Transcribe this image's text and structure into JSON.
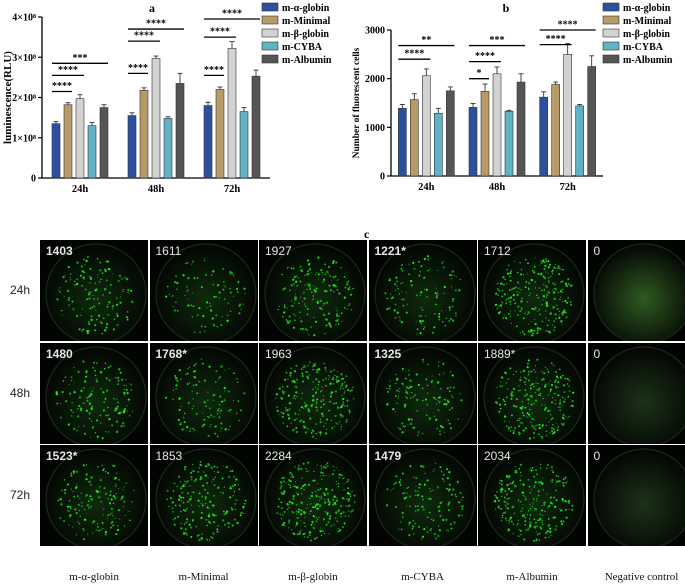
{
  "chart_data": [
    {
      "type": "bar",
      "panel_letter": "a",
      "categories": [
        "24h",
        "48h",
        "72h"
      ],
      "ylabel": "luminescence(RLU)",
      "ylim": [
        0,
        4
      ],
      "yticks": [
        "0",
        "1×10⁸",
        "2×10⁸",
        "3×10⁸",
        "4×10⁸"
      ],
      "series": [
        {
          "name": "m-α-globin",
          "color": "#2c4f9e",
          "values": [
            1.35,
            1.55,
            1.8
          ],
          "err": [
            0.05,
            0.07,
            0.08
          ]
        },
        {
          "name": "m-Minimal",
          "color": "#b89968",
          "values": [
            1.82,
            2.18,
            2.2
          ],
          "err": [
            0.05,
            0.06,
            0.06
          ]
        },
        {
          "name": "m-β-globin",
          "color": "#d2d2d2",
          "values": [
            1.97,
            2.97,
            3.22
          ],
          "err": [
            0.1,
            0.06,
            0.17
          ]
        },
        {
          "name": "m-CYBA",
          "color": "#5fb3c5",
          "values": [
            1.3,
            1.48,
            1.65
          ],
          "err": [
            0.08,
            0.04,
            0.1
          ]
        },
        {
          "name": "m-Albumin",
          "color": "#555555",
          "values": [
            1.75,
            2.35,
            2.53
          ],
          "err": [
            0.07,
            0.25,
            0.15
          ]
        }
      ],
      "annotations": [
        {
          "label": "****",
          "group": 0,
          "from": 0,
          "to": 1,
          "y": 2.15
        },
        {
          "label": "****",
          "group": 0,
          "from": 0,
          "to": 2,
          "y": 2.55
        },
        {
          "label": "***",
          "group": 0,
          "from": 0,
          "to": 4,
          "y": 2.85
        },
        {
          "label": "****",
          "group": 1,
          "from": 0,
          "to": 1,
          "y": 2.6
        },
        {
          "label": "****",
          "group": 1,
          "from": 0,
          "to": 2,
          "y": 3.4
        },
        {
          "label": "****",
          "group": 1,
          "from": 0,
          "to": 4,
          "y": 3.7
        },
        {
          "label": "****",
          "group": 2,
          "from": 0,
          "to": 1,
          "y": 2.55
        },
        {
          "label": "****",
          "group": 2,
          "from": 0,
          "to": 2,
          "y": 3.5
        },
        {
          "label": "****",
          "group": 2,
          "from": 0,
          "to": 4,
          "y": 3.95
        }
      ]
    },
    {
      "type": "bar",
      "panel_letter": "b",
      "categories": [
        "24h",
        "48h",
        "72h"
      ],
      "ylabel": "Number of fluorescent cells",
      "ylim": [
        0,
        3000
      ],
      "yticks": [
        "0",
        "1000",
        "2000",
        "3000"
      ],
      "series": [
        {
          "name": "m-α-globin",
          "color": "#2c4f9e",
          "values": [
            1390,
            1410,
            1620
          ],
          "err": [
            80,
            80,
            110
          ]
        },
        {
          "name": "m-Minimal",
          "color": "#b89968",
          "values": [
            1570,
            1740,
            1880
          ],
          "err": [
            120,
            150,
            50
          ]
        },
        {
          "name": "m-β-globin",
          "color": "#d2d2d2",
          "values": [
            2060,
            2100,
            2500
          ],
          "err": [
            140,
            140,
            220
          ]
        },
        {
          "name": "m-CYBA",
          "color": "#5fb3c5",
          "values": [
            1290,
            1330,
            1440
          ],
          "err": [
            100,
            20,
            30
          ]
        },
        {
          "name": "m-Albumin",
          "color": "#555555",
          "values": [
            1750,
            1930,
            2250
          ],
          "err": [
            80,
            170,
            220
          ]
        }
      ],
      "annotations": [
        {
          "label": "****",
          "group": 0,
          "from": 0,
          "to": 2,
          "y": 2400
        },
        {
          "label": "**",
          "group": 0,
          "from": 0,
          "to": 4,
          "y": 2680
        },
        {
          "label": "*",
          "group": 1,
          "from": 0,
          "to": 1,
          "y": 2000
        },
        {
          "label": "****",
          "group": 1,
          "from": 0,
          "to": 2,
          "y": 2350
        },
        {
          "label": "***",
          "group": 1,
          "from": 0,
          "to": 4,
          "y": 2680
        },
        {
          "label": "****",
          "group": 2,
          "from": 0,
          "to": 2,
          "y": 2700
        },
        {
          "label": "****",
          "group": 2,
          "from": 0,
          "to": 4,
          "y": 3000
        }
      ]
    }
  ],
  "panel_c": {
    "letter": "c",
    "rows": [
      "24h",
      "48h",
      "72h"
    ],
    "columns": [
      "m-α-globin",
      "m-Minimal",
      "m-β-globin",
      "m-CYBA",
      "m-Albumin",
      "Negative control"
    ],
    "counts": [
      [
        "1403",
        "1611",
        "1927",
        "1221*",
        "1712",
        "0"
      ],
      [
        "1480",
        "1768*",
        "1963",
        "1325",
        "1889*",
        "0"
      ],
      [
        "1523*",
        "1853",
        "2284",
        "1479",
        "2034",
        "0"
      ]
    ],
    "bold": [
      [
        true,
        false,
        false,
        true,
        false,
        false
      ],
      [
        true,
        true,
        false,
        true,
        false,
        false
      ],
      [
        true,
        false,
        false,
        true,
        false,
        false
      ]
    ],
    "density": [
      [
        0.55,
        0.35,
        0.7,
        0.45,
        0.95,
        0
      ],
      [
        0.55,
        0.45,
        0.95,
        0.5,
        0.95,
        0
      ],
      [
        0.6,
        0.75,
        1.0,
        0.55,
        0.95,
        0
      ]
    ]
  }
}
